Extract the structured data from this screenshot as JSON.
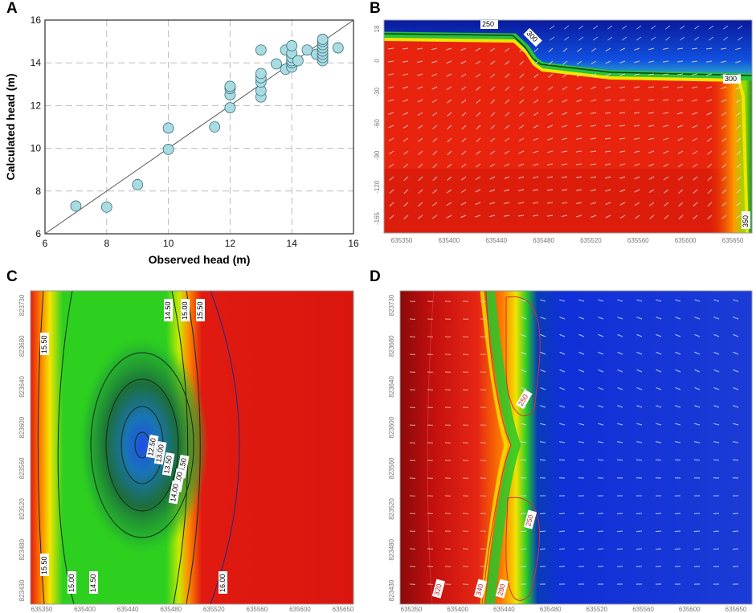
{
  "panels": {
    "a": {
      "letter": "A"
    },
    "b": {
      "letter": "B"
    },
    "c": {
      "letter": "C"
    },
    "d": {
      "letter": "D"
    }
  },
  "chart_data": [
    {
      "panel": "A",
      "type": "scatter",
      "xlabel": "Observed head (m)",
      "ylabel": "Calculated head (m)",
      "xlim": [
        6,
        16
      ],
      "ylim": [
        6,
        16
      ],
      "xticks": [
        "6",
        "8",
        "10",
        "12",
        "14",
        "16"
      ],
      "yticks": [
        "6",
        "8",
        "10",
        "12",
        "14",
        "16"
      ],
      "grid": true,
      "reference_line": "1:1",
      "marker_color": "#a9dbe3",
      "points": [
        {
          "x": 7.0,
          "y": 7.3
        },
        {
          "x": 8.0,
          "y": 7.25
        },
        {
          "x": 9.0,
          "y": 8.3
        },
        {
          "x": 10.0,
          "y": 9.95
        },
        {
          "x": 10.0,
          "y": 10.95
        },
        {
          "x": 11.5,
          "y": 11.0
        },
        {
          "x": 12.0,
          "y": 11.9
        },
        {
          "x": 12.0,
          "y": 12.5
        },
        {
          "x": 12.0,
          "y": 12.8
        },
        {
          "x": 12.0,
          "y": 12.9
        },
        {
          "x": 13.0,
          "y": 12.4
        },
        {
          "x": 13.0,
          "y": 12.7
        },
        {
          "x": 13.0,
          "y": 13.1
        },
        {
          "x": 13.0,
          "y": 13.3
        },
        {
          "x": 13.0,
          "y": 13.5
        },
        {
          "x": 13.0,
          "y": 14.6
        },
        {
          "x": 13.5,
          "y": 13.95
        },
        {
          "x": 13.8,
          "y": 13.7
        },
        {
          "x": 13.8,
          "y": 14.6
        },
        {
          "x": 14.0,
          "y": 13.8
        },
        {
          "x": 14.0,
          "y": 14.0
        },
        {
          "x": 14.0,
          "y": 14.1
        },
        {
          "x": 14.0,
          "y": 14.25
        },
        {
          "x": 14.0,
          "y": 14.45
        },
        {
          "x": 14.0,
          "y": 14.8
        },
        {
          "x": 14.2,
          "y": 14.1
        },
        {
          "x": 14.5,
          "y": 14.6
        },
        {
          "x": 14.8,
          "y": 14.4
        },
        {
          "x": 15.0,
          "y": 14.1
        },
        {
          "x": 15.0,
          "y": 14.25
        },
        {
          "x": 15.0,
          "y": 14.4
        },
        {
          "x": 15.0,
          "y": 14.55
        },
        {
          "x": 15.0,
          "y": 14.7
        },
        {
          "x": 15.0,
          "y": 14.85
        },
        {
          "x": 15.0,
          "y": 15.0
        },
        {
          "x": 15.0,
          "y": 15.1
        },
        {
          "x": 15.5,
          "y": 14.7
        }
      ]
    },
    {
      "panel": "B",
      "type": "heatmap",
      "subtype": "vertical cross-section with flow vectors",
      "xlim": [
        635330,
        635665
      ],
      "ylim": [
        -175,
        18
      ],
      "xticks": [
        "635350",
        "635400",
        "635440",
        "635480",
        "635520",
        "635560",
        "635600",
        "635650"
      ],
      "yticks": [
        "18",
        "0",
        "-30",
        "-60",
        "-90",
        "-120",
        "-165"
      ],
      "contour_labels": [
        "250",
        "300",
        "300",
        "350"
      ]
    },
    {
      "panel": "C",
      "type": "heatmap",
      "subtype": "plan view head contours",
      "xlim": [
        635330,
        635665
      ],
      "ylim": [
        823120,
        823745
      ],
      "xticks": [
        "635350",
        "635400",
        "635440",
        "635480",
        "635520",
        "635560",
        "635600",
        "635650"
      ],
      "yticks": [
        "823730",
        "823680",
        "823640",
        "823600",
        "823560",
        "823520",
        "823480",
        "823430"
      ],
      "contour_labels": [
        "15.50",
        "15.50",
        "14.50",
        "15.00",
        "15.50",
        "14.50",
        "15.00",
        "14.00",
        "13.50",
        "13.00",
        "12.50",
        "16.00",
        "15.00",
        "14.50"
      ]
    },
    {
      "panel": "D",
      "type": "heatmap",
      "subtype": "plan view with flow vectors",
      "xlim": [
        635330,
        635665
      ],
      "ylim": [
        823120,
        823745
      ],
      "xticks": [
        "635350",
        "635400",
        "635440",
        "635480",
        "635520",
        "635560",
        "635600",
        "635650"
      ],
      "yticks": [
        "823730",
        "823680",
        "823640",
        "823600",
        "823560",
        "823520",
        "823480",
        "823430"
      ],
      "contour_labels": [
        "250",
        "250",
        "320",
        "340",
        "280"
      ]
    }
  ]
}
